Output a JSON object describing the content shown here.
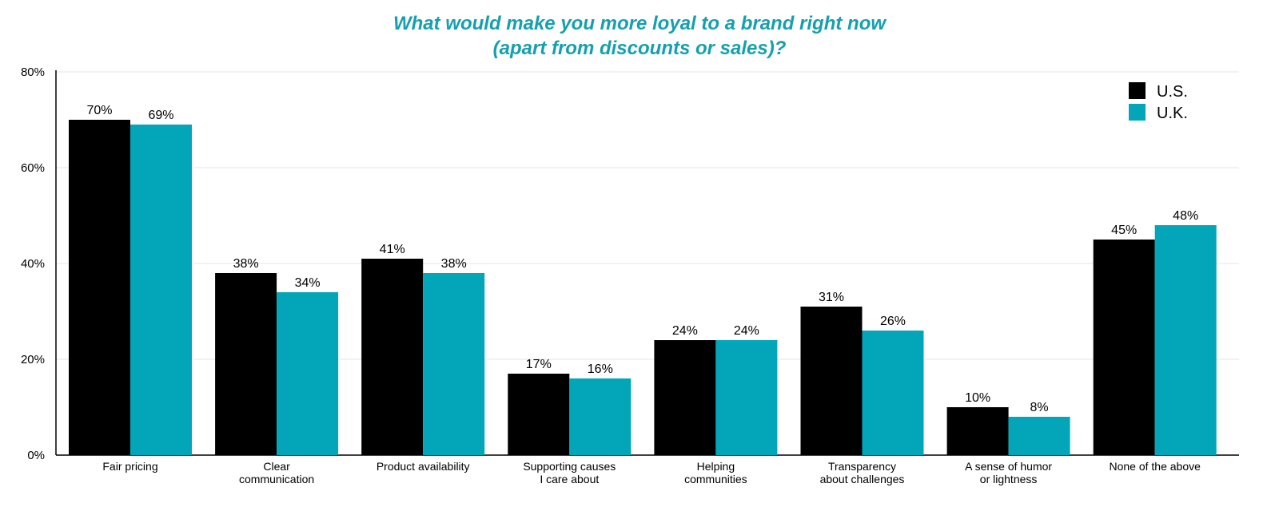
{
  "chart_data": {
    "type": "bar",
    "title_lines": [
      "What would make you more loyal to a brand right now",
      "(apart from discounts or sales)?"
    ],
    "title_color": "#14a0ae",
    "categories": [
      [
        "Fair pricing"
      ],
      [
        "Clear",
        "communication"
      ],
      [
        "Product availability"
      ],
      [
        "Supporting causes",
        "I care about"
      ],
      [
        "Helping",
        "communities"
      ],
      [
        "Transparency",
        "about challenges"
      ],
      [
        "A sense of humor",
        "or lightness"
      ],
      [
        "None of the above"
      ]
    ],
    "series": [
      {
        "name": "U.S.",
        "color": "#000000",
        "values": [
          70,
          38,
          41,
          17,
          24,
          31,
          10,
          45
        ],
        "labels": [
          "70%",
          "38%",
          "41%",
          "17%",
          "24%",
          "31%",
          "10%",
          "45%"
        ]
      },
      {
        "name": "U.K.",
        "color": "#03a6b8",
        "values": [
          69,
          34,
          38,
          16,
          24,
          26,
          8,
          48
        ],
        "labels": [
          "69%",
          "34%",
          "38%",
          "16%",
          "24%",
          "26%",
          "8%",
          "48%"
        ]
      }
    ],
    "ylim": [
      0,
      80
    ],
    "yticks": [
      0,
      20,
      40,
      60,
      80
    ],
    "ytick_labels": [
      "0%",
      "20%",
      "40%",
      "60%",
      "80%"
    ],
    "grid": true,
    "legend": "top-right"
  }
}
